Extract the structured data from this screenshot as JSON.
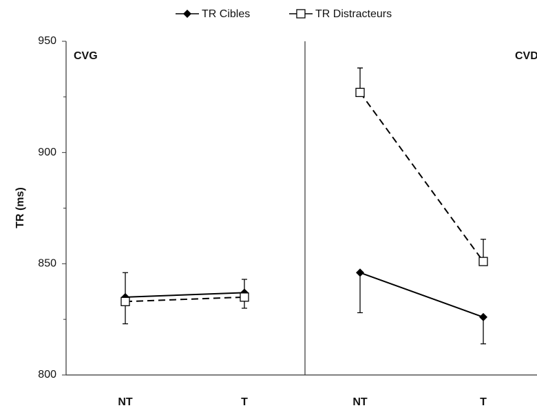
{
  "chart_data": [
    {
      "type": "line",
      "title": "CVG",
      "ylabel": "TR (ms)",
      "categories": [
        "NT",
        "T"
      ],
      "ylim": [
        800,
        950
      ],
      "yticks": [
        800,
        850,
        900,
        950
      ],
      "minor_yticks": [
        825,
        875,
        925
      ],
      "series": [
        {
          "name": "TR Cibles",
          "color": "#000000",
          "marker": "diamond",
          "dashed": false,
          "error_direction": "up",
          "values": [
            835,
            837
          ],
          "errors": [
            11,
            6
          ]
        },
        {
          "name": "TR Distracteurs",
          "color": "#000000",
          "marker": "square",
          "dashed": true,
          "error_direction": "down",
          "values": [
            833,
            835
          ],
          "errors": [
            10,
            5
          ]
        }
      ]
    },
    {
      "type": "line",
      "title": "CVD",
      "categories": [
        "NT",
        "T"
      ],
      "ylim": [
        800,
        950
      ],
      "series": [
        {
          "name": "TR Cibles",
          "color": "#000000",
          "marker": "diamond",
          "dashed": false,
          "error_direction": "down",
          "values": [
            846,
            826
          ],
          "errors": [
            18,
            12
          ]
        },
        {
          "name": "TR Distracteurs",
          "color": "#000000",
          "marker": "square",
          "dashed": true,
          "error_direction": "up",
          "values": [
            927,
            851
          ],
          "errors": [
            11,
            10
          ]
        }
      ]
    }
  ]
}
